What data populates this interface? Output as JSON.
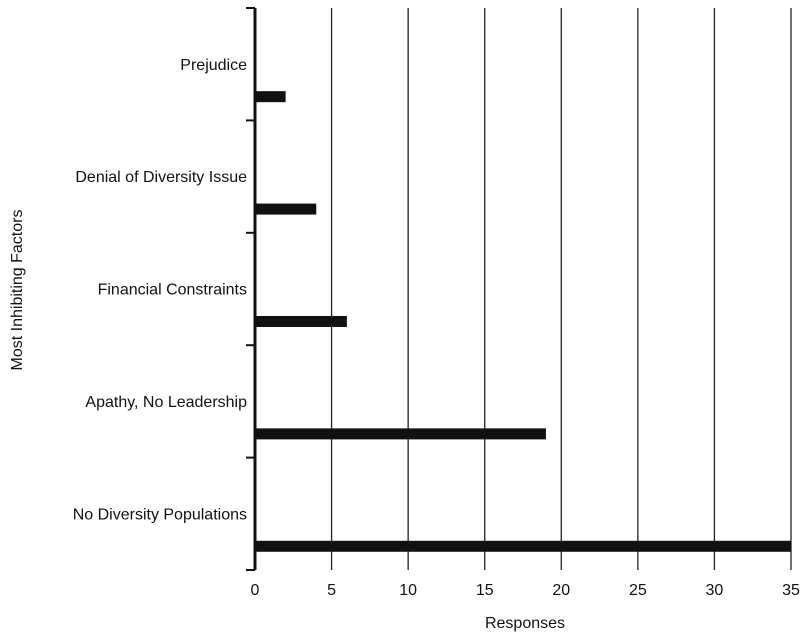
{
  "chart_data": {
    "type": "bar",
    "orientation": "horizontal",
    "categories": [
      "Prejudice",
      "Denial of Diversity Issue",
      "Financial Constraints",
      "Apathy, No Leadership",
      "No Diversity Populations"
    ],
    "values": [
      2,
      4,
      6,
      19,
      35
    ],
    "xlabel": "Responses",
    "ylabel": "Most Inhibiting Factors",
    "xlim": [
      0,
      35
    ],
    "xticks": [
      0,
      5,
      10,
      15,
      20,
      25,
      30,
      35
    ],
    "grid": "vertical",
    "bar_color": "#111111"
  }
}
